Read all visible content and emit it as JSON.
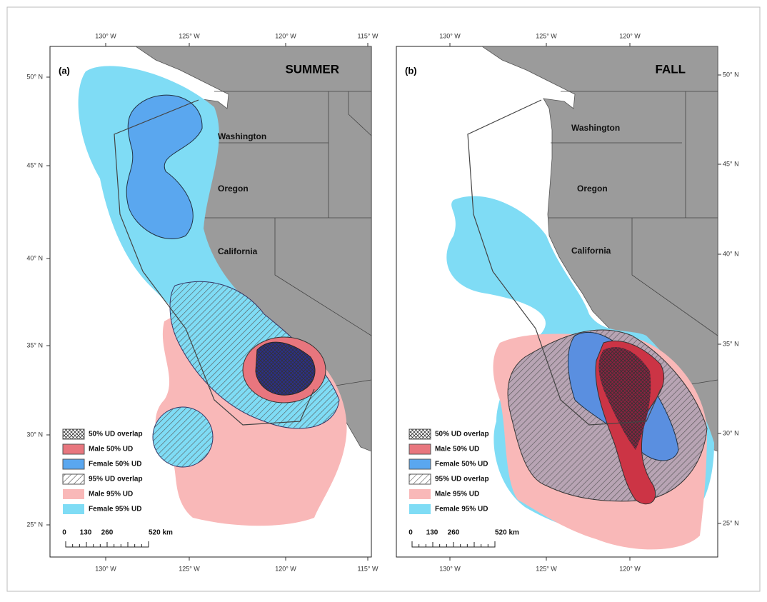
{
  "panels": [
    {
      "label": "(a)",
      "season": "SUMMER",
      "lon_top": [
        "130° W",
        "125° W",
        "120° W",
        "115° W"
      ],
      "lon_bottom": [
        "130° W",
        "125° W",
        "120° W",
        "115° W"
      ],
      "lat": [
        "50° N",
        "45° N",
        "40° N",
        "35° N",
        "30° N",
        "25° N"
      ],
      "states": [
        "Washington",
        "Oregon",
        "California"
      ],
      "legend": [
        "50% UD overlap",
        "Male 50% UD",
        "Female 50% UD",
        "95% UD overlap",
        "Male 95% UD",
        "Female 95% UD"
      ],
      "scale": [
        "0",
        "130",
        "260",
        "520 km"
      ]
    },
    {
      "label": "(b)",
      "season": "FALL",
      "lon_top": [
        "130° W",
        "125° W",
        "120° W"
      ],
      "lon_bottom": [
        "130° W",
        "125° W",
        "120° W"
      ],
      "lat": [
        "50° N",
        "45° N",
        "40° N",
        "35° N",
        "30° N",
        "25° N"
      ],
      "states": [
        "Washington",
        "Oregon",
        "California"
      ],
      "legend": [
        "50% UD overlap",
        "Male 50% UD",
        "Female 50% UD",
        "95% UD overlap",
        "Male 95% UD",
        "Female 95% UD"
      ],
      "scale": [
        "0",
        "130",
        "260",
        "520 km"
      ]
    }
  ]
}
